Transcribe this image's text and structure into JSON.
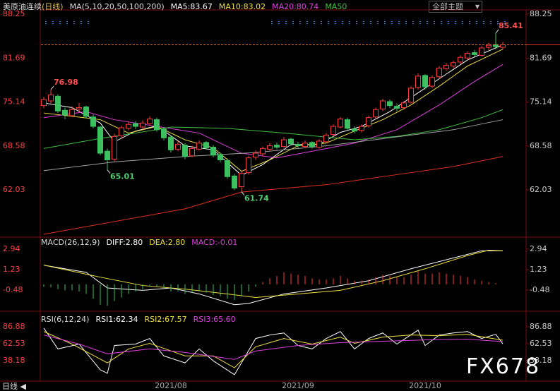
{
  "toolbar": {
    "theme": "全部主题",
    "period": "日线"
  },
  "watermark": "FX678",
  "chart_data": [
    {
      "type": "candlestick",
      "title": "美原油连续",
      "subtitle": "(日线)",
      "indicator": "MA(5,10,20,50,100,200)",
      "up_color": "#ff3c3c",
      "down_color": "#3cc060",
      "ylim": [
        55.08,
        88.88
      ],
      "yticks": [
        88.25,
        81.69,
        75.14,
        68.58,
        62.03
      ],
      "categories": [
        null,
        null,
        null,
        null,
        null,
        null,
        null,
        null,
        null,
        null,
        null,
        null,
        null,
        null,
        null,
        null,
        null,
        null,
        "2021/08",
        null,
        null,
        null,
        null,
        null,
        null,
        null,
        null,
        null,
        null,
        null,
        null,
        null,
        null,
        null,
        null,
        null,
        "2021/09",
        null,
        null,
        null,
        null,
        null,
        null,
        null,
        null,
        null,
        null,
        null,
        null,
        null,
        null,
        null,
        null,
        null,
        "2021/10",
        null,
        null,
        null,
        null,
        null,
        null,
        null,
        null,
        null,
        null,
        null
      ],
      "candles": [
        [
          74.6,
          75.9,
          74.2,
          75.5
        ],
        [
          75.3,
          76.98,
          74.9,
          76.2
        ],
        [
          76.0,
          76.3,
          73.5,
          73.8
        ],
        [
          73.9,
          74.3,
          72.6,
          73.2
        ],
        [
          73.1,
          74.5,
          72.9,
          74.0
        ],
        [
          74.1,
          75.0,
          73.6,
          74.3
        ],
        [
          74.4,
          74.6,
          72.7,
          73.0
        ],
        [
          72.9,
          73.3,
          71.2,
          71.5
        ],
        [
          71.4,
          71.6,
          67.2,
          67.5
        ],
        [
          67.8,
          68.2,
          65.01,
          66.5
        ],
        [
          66.6,
          70.4,
          66.3,
          70.0
        ],
        [
          70.1,
          71.6,
          69.7,
          71.3
        ],
        [
          71.2,
          72.2,
          70.9,
          71.8
        ],
        [
          71.9,
          72.3,
          71.1,
          71.5
        ],
        [
          71.4,
          72.4,
          71.0,
          72.0
        ],
        [
          71.9,
          73.0,
          71.6,
          72.6
        ],
        [
          72.5,
          72.8,
          70.7,
          71.0
        ],
        [
          71.1,
          71.4,
          69.4,
          69.8
        ],
        [
          69.9,
          70.2,
          67.6,
          68.0
        ],
        [
          68.1,
          69.3,
          67.8,
          68.8
        ],
        [
          68.7,
          69.0,
          66.6,
          67.0
        ],
        [
          67.1,
          68.6,
          66.9,
          68.2
        ],
        [
          68.1,
          69.4,
          67.9,
          69.0
        ],
        [
          69.1,
          69.3,
          68.0,
          68.3
        ],
        [
          68.4,
          68.7,
          66.9,
          67.2
        ],
        [
          67.3,
          67.6,
          66.1,
          66.5
        ],
        [
          66.4,
          66.7,
          63.7,
          64.0
        ],
        [
          64.1,
          64.4,
          62.0,
          62.3
        ],
        [
          62.5,
          64.8,
          61.74,
          64.5
        ],
        [
          64.6,
          67.1,
          64.3,
          66.8
        ],
        [
          66.9,
          67.9,
          66.5,
          67.5
        ],
        [
          67.4,
          68.5,
          67.0,
          68.2
        ],
        [
          68.1,
          69.0,
          67.8,
          68.6
        ],
        [
          68.7,
          69.1,
          68.1,
          68.4
        ],
        [
          68.5,
          69.9,
          68.3,
          69.5
        ],
        [
          69.6,
          69.8,
          68.6,
          68.9
        ],
        [
          68.8,
          69.2,
          68.3,
          68.6
        ],
        [
          68.5,
          69.4,
          68.2,
          69.0
        ],
        [
          69.1,
          69.3,
          68.2,
          68.5
        ],
        [
          68.4,
          69.6,
          68.2,
          69.3
        ],
        [
          69.2,
          70.5,
          69.0,
          70.2
        ],
        [
          70.3,
          71.8,
          70.0,
          71.5
        ],
        [
          71.4,
          72.9,
          71.2,
          72.6
        ],
        [
          72.5,
          72.8,
          70.9,
          71.2
        ],
        [
          71.1,
          71.5,
          70.5,
          70.8
        ],
        [
          70.9,
          71.8,
          70.6,
          71.5
        ],
        [
          71.6,
          73.1,
          71.3,
          72.8
        ],
        [
          72.9,
          74.3,
          72.6,
          74.0
        ],
        [
          74.1,
          75.6,
          73.8,
          75.3
        ],
        [
          75.2,
          75.5,
          74.2,
          74.6
        ],
        [
          74.5,
          74.9,
          73.8,
          74.2
        ],
        [
          74.3,
          75.3,
          74.0,
          75.0
        ],
        [
          75.1,
          77.5,
          74.9,
          77.2
        ],
        [
          77.3,
          79.4,
          77.0,
          79.0
        ],
        [
          79.1,
          79.3,
          77.0,
          77.4
        ],
        [
          77.5,
          79.1,
          77.2,
          78.8
        ],
        [
          78.9,
          80.5,
          78.6,
          80.2
        ],
        [
          80.1,
          81.0,
          79.8,
          80.6
        ],
        [
          80.5,
          81.3,
          80.2,
          81.0
        ],
        [
          81.1,
          82.1,
          80.8,
          81.8
        ],
        [
          81.7,
          82.7,
          81.4,
          82.4
        ],
        [
          82.5,
          82.9,
          81.9,
          82.2
        ],
        [
          82.1,
          83.5,
          81.9,
          83.2
        ],
        [
          83.3,
          84.0,
          82.9,
          83.6
        ],
        [
          83.7,
          85.41,
          83.0,
          83.4
        ],
        [
          83.3,
          84.1,
          83.0,
          83.67
        ]
      ],
      "series": [
        {
          "name": "MA5:83.67",
          "color": "#ffffff",
          "x": [
            0,
            4,
            8,
            10,
            13,
            16,
            20,
            24,
            28,
            31,
            35,
            39,
            42,
            45,
            49,
            53,
            56,
            60,
            65
          ],
          "values": [
            75.0,
            74.3,
            72.0,
            69.2,
            70.8,
            71.6,
            68.6,
            68.0,
            64.2,
            65.8,
            68.8,
            68.8,
            70.6,
            71.5,
            73.7,
            76.5,
            78.6,
            81.4,
            83.67
          ]
        },
        {
          "name": "MA10:83.02",
          "color": "#f0e040",
          "x": [
            0,
            8,
            12,
            16,
            20,
            24,
            28,
            32,
            36,
            40,
            44,
            48,
            52,
            56,
            60,
            65
          ],
          "values": [
            73.5,
            72.5,
            70.5,
            71.5,
            69.5,
            68.3,
            64.8,
            66.5,
            68.6,
            69.0,
            70.8,
            72.5,
            74.7,
            77.5,
            80.5,
            83.02
          ]
        },
        {
          "name": "MA20:80.74",
          "color": "#e040e0",
          "x": [
            0,
            6,
            10,
            16,
            22,
            28,
            33,
            38,
            44,
            50,
            56,
            61,
            65
          ],
          "values": [
            72.8,
            73.7,
            72.5,
            71.5,
            70.5,
            67.5,
            66.8,
            67.8,
            69.0,
            71.0,
            74.7,
            78.2,
            80.74
          ]
        },
        {
          "name": "MA50",
          "color": "#40c040",
          "x": [
            0,
            8,
            16,
            18,
            26,
            34,
            40,
            44,
            50,
            56,
            62,
            65
          ],
          "values": [
            68.2,
            69.7,
            71.0,
            71.4,
            71.2,
            70.5,
            69.9,
            69.5,
            70.0,
            71.0,
            72.8,
            74.0
          ]
        },
        {
          "color": "#a0a0a0",
          "x": [
            0,
            10,
            20,
            30,
            40,
            46,
            52,
            58,
            65
          ],
          "values": [
            64.9,
            66.2,
            67.0,
            67.6,
            68.6,
            69.4,
            70.2,
            71.0,
            72.5
          ]
        },
        {
          "color": "#e03020",
          "x": [
            0,
            20,
            28,
            40,
            50,
            58,
            65
          ],
          "values": [
            55.4,
            59.2,
            61.7,
            62.8,
            64.3,
            65.5,
            67.0
          ]
        }
      ]
    },
    {
      "type": "macd",
      "title": "MACD(26,12,9)",
      "up_color": "#ff3c3c",
      "down_color": "#3cc060",
      "ylim": [
        -2.01,
        3.82
      ],
      "yticks": [
        2.94,
        1.23,
        -0.48
      ],
      "bars": {
        "name": "MACD:-0.01",
        "color": "#e040e0",
        "values": [
          -0.2,
          -0.25,
          -0.4,
          -0.5,
          -0.5,
          -0.6,
          -0.8,
          -1.2,
          -1.7,
          -1.8,
          -1.4,
          -1.1,
          -0.8,
          -0.6,
          -0.4,
          -0.2,
          -0.2,
          -0.3,
          -0.6,
          -0.6,
          -0.8,
          -0.7,
          -0.6,
          -0.7,
          -0.9,
          -1.0,
          -1.2,
          -1.3,
          -1.0,
          -0.6,
          -0.2,
          0.2,
          0.5,
          0.7,
          1.0,
          0.9,
          0.8,
          0.7,
          0.5,
          0.4,
          0.4,
          0.5,
          0.7,
          0.5,
          0.3,
          0.3,
          0.4,
          0.6,
          0.8,
          0.7,
          0.6,
          0.6,
          0.8,
          1.1,
          0.9,
          0.9,
          1.0,
          0.9,
          0.8,
          0.7,
          0.6,
          0.4,
          0.3,
          0.2,
          0.1,
          -0.01
        ]
      },
      "series": [
        {
          "name": "DIFF:2.80",
          "color": "#ffffff",
          "x": [
            0,
            6,
            9,
            14,
            18,
            22,
            27,
            29,
            34,
            40,
            46,
            52,
            58,
            62,
            65
          ],
          "values": [
            1.6,
            1.0,
            -0.3,
            -0.5,
            -0.3,
            -0.8,
            -1.7,
            -1.6,
            -0.8,
            -0.3,
            0.3,
            1.3,
            2.2,
            2.8,
            2.8
          ]
        },
        {
          "name": "DEA:2.80",
          "color": "#f0e040",
          "x": [
            0,
            8,
            14,
            20,
            26,
            30,
            36,
            42,
            48,
            54,
            60,
            63,
            65
          ],
          "values": [
            1.6,
            0.6,
            -0.1,
            -0.4,
            -0.8,
            -1.1,
            -0.8,
            -0.5,
            0.3,
            1.3,
            2.4,
            2.85,
            2.8
          ]
        }
      ]
    },
    {
      "type": "line",
      "title": "RSI(6,12,24)",
      "ylim": [
        8.76,
        105.1
      ],
      "yticks": [
        86.88,
        62.53,
        38.18
      ],
      "series": [
        {
          "name": "RSI1:62.34",
          "color": "#ffffff",
          "x": [
            0,
            2,
            5,
            8,
            9,
            10,
            13,
            15,
            17,
            20,
            22,
            24,
            27,
            28,
            30,
            32,
            34,
            36,
            38,
            40,
            42,
            44,
            46,
            48,
            50,
            53,
            54,
            56,
            58,
            60,
            62,
            64,
            65
          ],
          "values": [
            85,
            55,
            62,
            25,
            20,
            60,
            62,
            70,
            45,
            35,
            55,
            38,
            18,
            35,
            70,
            75,
            78,
            60,
            55,
            70,
            80,
            55,
            70,
            78,
            62,
            82,
            60,
            75,
            78,
            80,
            70,
            76,
            62.34
          ]
        },
        {
          "name": "RSI2:67.57",
          "color": "#f0e040",
          "x": [
            0,
            4,
            9,
            12,
            15,
            20,
            24,
            27,
            30,
            34,
            38,
            42,
            44,
            48,
            52,
            56,
            60,
            65
          ],
          "values": [
            80,
            62,
            35,
            55,
            63,
            45,
            45,
            28,
            58,
            70,
            62,
            72,
            63,
            72,
            75,
            74,
            76,
            67.57
          ]
        },
        {
          "name": "RSI3:65.60",
          "color": "#e040e0",
          "x": [
            0,
            5,
            9,
            15,
            20,
            27,
            30,
            36,
            42,
            48,
            54,
            60,
            65
          ],
          "values": [
            75,
            62,
            48,
            55,
            50,
            40,
            52,
            60,
            64,
            66,
            68,
            69,
            65.6
          ]
        }
      ]
    }
  ]
}
